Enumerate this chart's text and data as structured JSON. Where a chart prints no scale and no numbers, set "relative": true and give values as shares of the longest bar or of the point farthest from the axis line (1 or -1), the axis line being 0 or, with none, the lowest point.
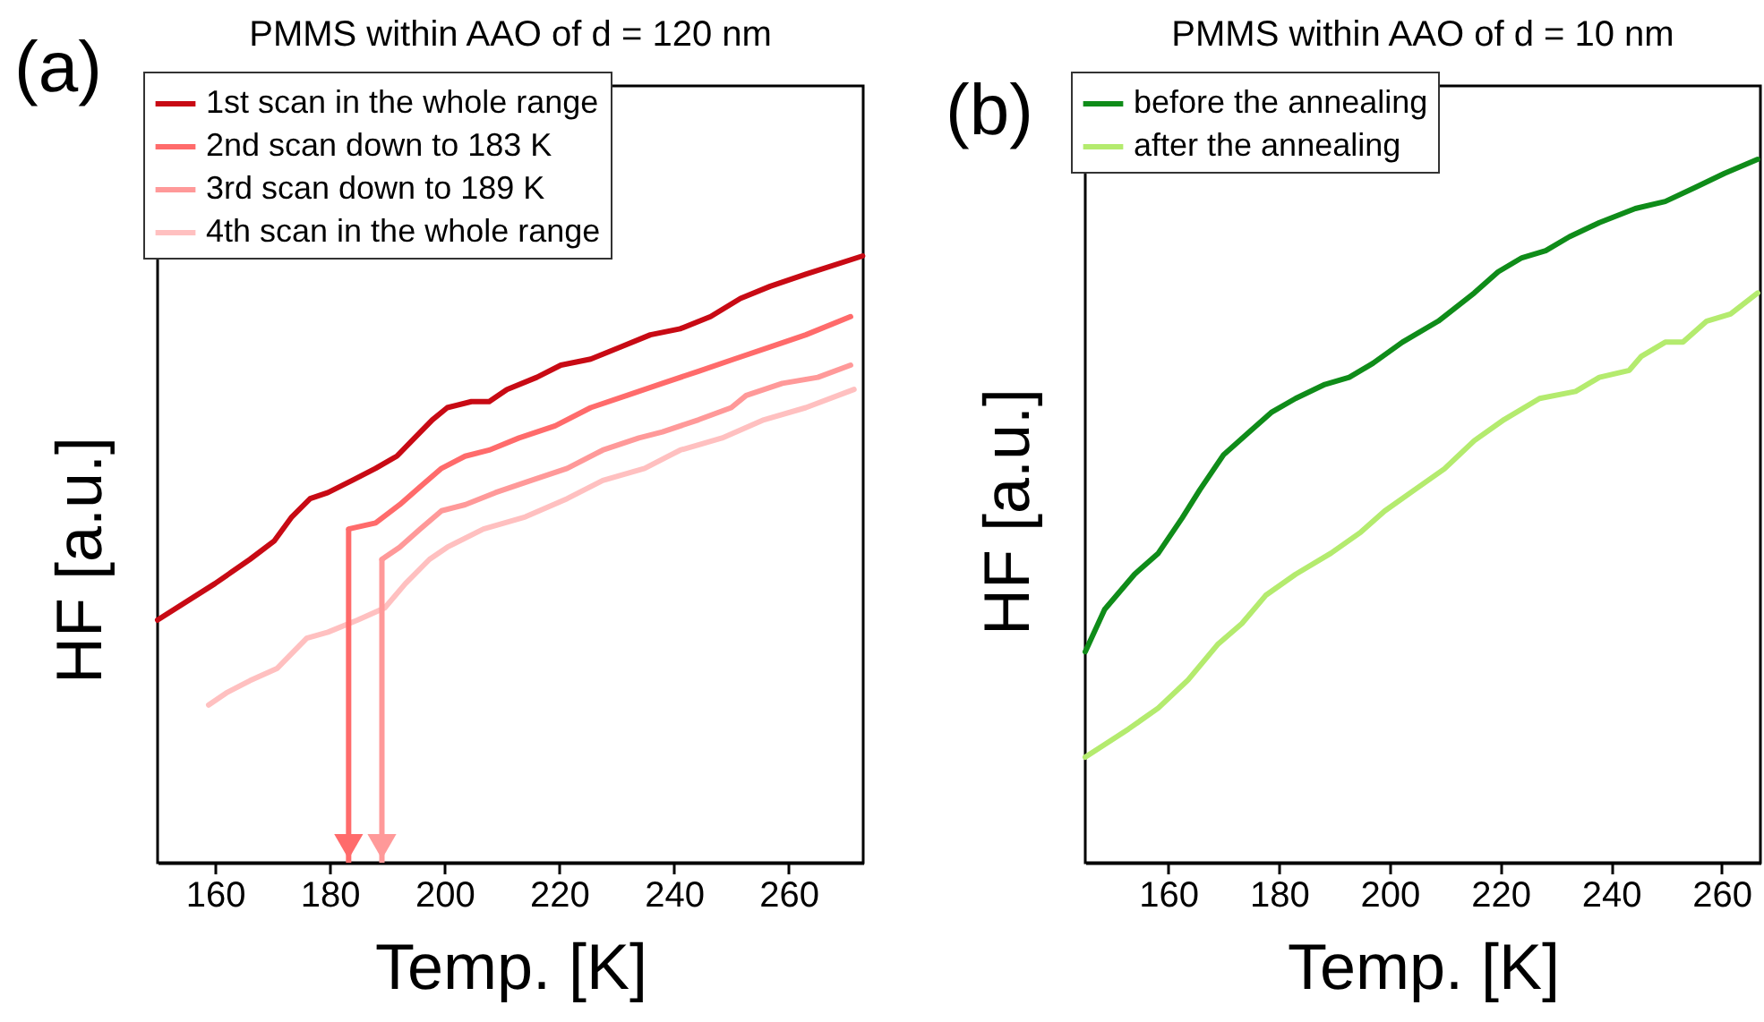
{
  "chart_data": [
    {
      "type": "line",
      "title": "PMMS within AAO of d = 120 nm",
      "xlabel": "Temp. [K]",
      "ylabel": "HF [a.u.]",
      "annotations": [
        "(a)"
      ],
      "relative": true,
      "legend": "top left",
      "xlim": [
        150,
        273
      ],
      "xticks": [
        160,
        180,
        200,
        220,
        240,
        260
      ],
      "series": [
        {
          "name": "1st scan in the whole range",
          "color": "#c80a14",
          "x": [
            150,
            160,
            166.1,
            170.3,
            173.4,
            176.6,
            179.7,
            183.9,
            188,
            191.7,
            194.8,
            197.9,
            200.5,
            204.7,
            207.8,
            210.9,
            216.1,
            220.3,
            225.5,
            230.7,
            235.9,
            241.1,
            246.4,
            251.6,
            256.8,
            263,
            272.9
          ],
          "values": [
            0.4,
            0.46,
            0.5,
            0.53,
            0.57,
            0.6,
            0.61,
            0.63,
            0.65,
            0.67,
            0.7,
            0.73,
            0.75,
            0.76,
            0.76,
            0.78,
            0.8,
            0.82,
            0.83,
            0.85,
            0.87,
            0.88,
            0.9,
            0.93,
            0.95,
            0.97,
            1
          ]
        },
        {
          "name": "2nd scan down to 183 K",
          "color": "#ff6b6b",
          "x": [
            183.3,
            188,
            192.2,
            195.8,
            199.5,
            203.6,
            207.8,
            213,
            219.3,
            225.5,
            231.8,
            238,
            244.3,
            250.5,
            256.8,
            263,
            270.8
          ],
          "values": [
            0.55,
            0.56,
            0.59,
            0.62,
            0.65,
            0.67,
            0.68,
            0.7,
            0.72,
            0.75,
            0.77,
            0.79,
            0.81,
            0.83,
            0.85,
            0.87,
            0.9
          ]
        },
        {
          "name": "3rd scan down to 189 K",
          "color": "#ff9999",
          "x": [
            189.1,
            192.2,
            195.8,
            199.5,
            203.6,
            208.9,
            215.1,
            221.4,
            227.6,
            233.9,
            238,
            244.3,
            250,
            252.6,
            258.9,
            265.1,
            270.8
          ],
          "values": [
            0.5,
            0.52,
            0.55,
            0.58,
            0.59,
            0.61,
            0.63,
            0.65,
            0.68,
            0.7,
            0.71,
            0.73,
            0.75,
            0.77,
            0.79,
            0.8,
            0.82
          ]
        },
        {
          "name": "4th scan in the whole range",
          "color": "#ffc0c0",
          "x": [
            158.9,
            162,
            166.1,
            170.8,
            176,
            179.7,
            184.9,
            189.6,
            193.2,
            197.4,
            200.5,
            206.8,
            214.1,
            221.4,
            227.6,
            234.9,
            241.1,
            248.4,
            255.7,
            263,
            271.4
          ],
          "values": [
            0.26,
            0.28,
            0.3,
            0.32,
            0.37,
            0.38,
            0.4,
            0.42,
            0.46,
            0.5,
            0.52,
            0.55,
            0.57,
            0.6,
            0.63,
            0.65,
            0.68,
            0.7,
            0.73,
            0.75,
            0.78
          ]
        }
      ]
    },
    {
      "type": "line",
      "title": "PMMS within AAO of d = 10 nm",
      "xlabel": "Temp. [K]",
      "ylabel": "HF [a.u.]",
      "annotations": [
        "(b)"
      ],
      "relative": true,
      "legend": "top left",
      "xlim": [
        145,
        267
      ],
      "xticks": [
        160,
        180,
        200,
        220,
        240,
        260
      ],
      "series": [
        {
          "name": "before the annealing",
          "color": "#0f8c19",
          "x": [
            145,
            148.5,
            153.9,
            158.2,
            162.5,
            165.7,
            170,
            174.3,
            178.6,
            183,
            188.3,
            192.7,
            197,
            202.3,
            208.8,
            215.3,
            219.6,
            223.9,
            228.2,
            232.5,
            237.9,
            244.4,
            249.8,
            255.2,
            260.5,
            266.5
          ],
          "values": [
            0.3,
            0.36,
            0.41,
            0.44,
            0.49,
            0.53,
            0.58,
            0.61,
            0.64,
            0.66,
            0.68,
            0.69,
            0.71,
            0.74,
            0.77,
            0.81,
            0.84,
            0.86,
            0.87,
            0.89,
            0.91,
            0.93,
            0.94,
            0.96,
            0.98,
            1
          ]
        },
        {
          "name": "after the annealing",
          "color": "#b4eb6e",
          "x": [
            145,
            152.8,
            158.2,
            163.6,
            168.9,
            173.3,
            177.6,
            183,
            189.4,
            194.8,
            199.1,
            204.5,
            209.9,
            215.3,
            220.7,
            227.1,
            233.6,
            237.9,
            243.3,
            245.5,
            249.8,
            253,
            257.3,
            261.6,
            266.5
          ],
          "values": [
            0.15,
            0.19,
            0.22,
            0.26,
            0.31,
            0.34,
            0.38,
            0.41,
            0.44,
            0.47,
            0.5,
            0.53,
            0.56,
            0.6,
            0.63,
            0.66,
            0.67,
            0.69,
            0.7,
            0.72,
            0.74,
            0.74,
            0.77,
            0.78,
            0.81
          ]
        }
      ]
    }
  ]
}
